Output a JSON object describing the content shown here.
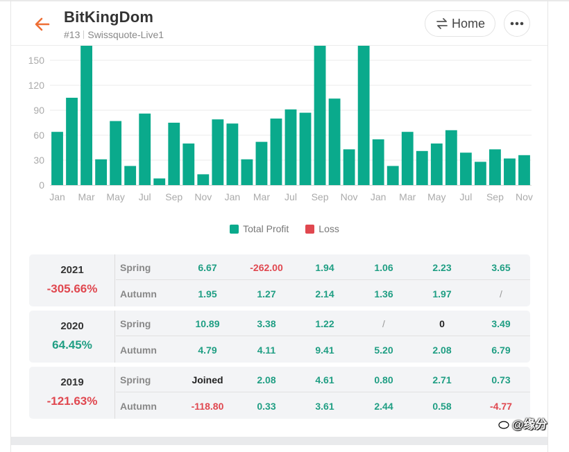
{
  "header": {
    "title": "BitKingDom",
    "account_number": "#13",
    "server": "Swissquote-Live1",
    "home_label": "Home"
  },
  "colors": {
    "profit": "#0aaa8c",
    "loss": "#e0474f",
    "accent_back": "#ee6f35"
  },
  "legend": {
    "profit_label": "Total Profit",
    "loss_label": "Loss"
  },
  "chart_data": {
    "type": "bar",
    "y_ticks": [
      "0",
      "30",
      "60",
      "90",
      "120",
      "150"
    ],
    "ylim": [
      0,
      170
    ],
    "x_tick_labels": [
      "Jan",
      "Mar",
      "May",
      "Jul",
      "Sep",
      "Nov",
      "Jan",
      "Mar",
      "Jul",
      "Sep",
      "Nov",
      "Jan",
      "Mar",
      "May",
      "Jul",
      "Sep",
      "Nov"
    ],
    "series": [
      {
        "name": "Total Profit",
        "values": [
          64,
          105,
          170,
          31,
          77,
          23,
          86,
          8,
          75,
          50,
          13,
          79,
          74,
          31,
          52,
          80,
          91,
          87,
          170,
          104,
          43,
          170,
          55,
          23,
          64,
          41,
          50,
          66,
          39,
          28,
          43,
          32,
          36
        ]
      }
    ],
    "grid": true,
    "legend_position": "bottom-center"
  },
  "years": [
    {
      "year": "2021",
      "total": "-305.66%",
      "total_sign": "red",
      "spring": {
        "label": "Spring",
        "cells": [
          [
            "6.67",
            "green"
          ],
          [
            "-262.00",
            "red"
          ],
          [
            "1.94",
            "green"
          ],
          [
            "1.06",
            "green"
          ],
          [
            "2.23",
            "green"
          ],
          [
            "3.65",
            "green"
          ]
        ]
      },
      "autumn": {
        "label": "Autumn",
        "cells": [
          [
            "1.95",
            "green"
          ],
          [
            "1.27",
            "green"
          ],
          [
            "2.14",
            "green"
          ],
          [
            "1.36",
            "green"
          ],
          [
            "1.97",
            "green"
          ],
          [
            "/",
            "muted"
          ]
        ]
      }
    },
    {
      "year": "2020",
      "total": "64.45%",
      "total_sign": "green",
      "spring": {
        "label": "Spring",
        "cells": [
          [
            "10.89",
            "green"
          ],
          [
            "3.38",
            "green"
          ],
          [
            "1.22",
            "green"
          ],
          [
            "/",
            "muted"
          ],
          [
            "0",
            "dark"
          ],
          [
            "3.49",
            "green"
          ]
        ]
      },
      "autumn": {
        "label": "Autumn",
        "cells": [
          [
            "4.79",
            "green"
          ],
          [
            "4.11",
            "green"
          ],
          [
            "9.41",
            "green"
          ],
          [
            "5.20",
            "green"
          ],
          [
            "2.08",
            "green"
          ],
          [
            "6.79",
            "green"
          ]
        ]
      }
    },
    {
      "year": "2019",
      "total": "-121.63%",
      "total_sign": "red",
      "spring": {
        "label": "Spring",
        "cells": [
          [
            "Joined",
            "dark"
          ],
          [
            "2.08",
            "green"
          ],
          [
            "4.61",
            "green"
          ],
          [
            "0.80",
            "green"
          ],
          [
            "2.71",
            "green"
          ],
          [
            "0.73",
            "green"
          ]
        ]
      },
      "autumn": {
        "label": "Autumn",
        "cells": [
          [
            "-118.80",
            "red"
          ],
          [
            "0.33",
            "green"
          ],
          [
            "3.61",
            "green"
          ],
          [
            "2.44",
            "green"
          ],
          [
            "0.58",
            "green"
          ],
          [
            "-4.77",
            "red"
          ]
        ]
      }
    }
  ],
  "watermark": "@缘分"
}
